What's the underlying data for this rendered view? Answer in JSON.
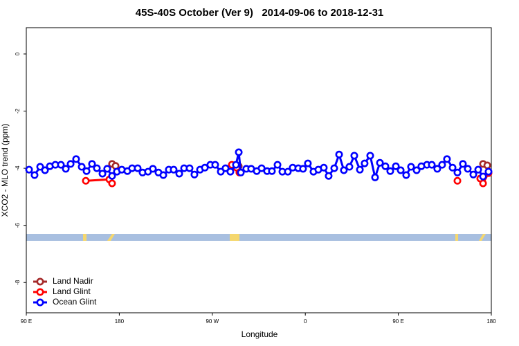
{
  "chart_data": {
    "type": "line",
    "title": "45S-40S October (Ver 9)   2014-09-06 to 2018-12-31",
    "x_label": "Longitude",
    "y_label": "XCO2 - MLO trend (ppm)",
    "xlim": [
      90,
      540
    ],
    "xticks": [
      {
        "value": 90,
        "label": "90 E"
      },
      180,
      {
        "value": 270,
        "label": "90 W"
      },
      {
        "value": 360,
        "label": "0"
      },
      {
        "value": 450,
        "label": "90 E"
      },
      {
        "value": 540,
        "label": "180"
      }
    ],
    "ylim": [
      -9.06,
      0.92
    ],
    "yticks": [
      0,
      -2,
      -4,
      -6,
      -8
    ],
    "grid": false,
    "legend": "bottom-left",
    "series": [
      {
        "name": "Land Nadir",
        "color": "#a52a2a",
        "x": [
          173.0,
          176.4,
          null,
          295.6,
          null,
          532.0,
          536.1
        ],
        "values": [
          -3.85,
          -3.92,
          null,
          -3.93,
          null,
          -3.85,
          -3.9
        ]
      },
      {
        "name": "Land Glint",
        "color": "#ff0000",
        "x": [
          147.6,
          170.4,
          173.0,
          null,
          288.9,
          293.6,
          296.2,
          null,
          507.2,
          null,
          529.3,
          532.0,
          537.3
        ],
        "values": [
          -4.44,
          -4.39,
          -4.53,
          null,
          -3.88,
          -3.98,
          -4.15,
          null,
          -4.44,
          null,
          -4.36,
          -4.53,
          -4.17
        ]
      },
      {
        "name": "Ocean Glint",
        "color": "#0000ff",
        "x": [
          92.7,
          98.0,
          103.4,
          108.1,
          112.8,
          118.1,
          123.5,
          128.2,
          132.9,
          138.2,
          143.6,
          148.3,
          153.6,
          158.3,
          163.7,
          168.3,
          173.0,
          177.7,
          182.4,
          187.8,
          192.4,
          197.8,
          202.5,
          207.8,
          212.5,
          217.9,
          222.6,
          227.9,
          232.6,
          238.0,
          242.7,
          248.0,
          252.7,
          258.1,
          262.8,
          268.1,
          272.8,
          278.2,
          282.8,
          287.5,
          292.9,
          295.6,
          297.6,
          302.9,
          307.6,
          313.0,
          317.7,
          323.0,
          327.7,
          333.1,
          337.8,
          343.1,
          347.8,
          353.2,
          357.8,
          362.5,
          367.9,
          372.6,
          377.9,
          382.6,
          388.0,
          392.7,
          397.3,
          402.7,
          407.4,
          412.8,
          417.4,
          422.8,
          427.5,
          432.2,
          437.5,
          442.2,
          447.6,
          452.3,
          457.6,
          462.3,
          467.7,
          472.3,
          477.7,
          482.4,
          487.7,
          492.4,
          497.1,
          502.5,
          507.2,
          512.5,
          517.2,
          522.6,
          527.3,
          532.0,
          537.3
        ],
        "values": [
          -4.05,
          -4.24,
          -3.95,
          -4.07,
          -3.93,
          -3.88,
          -3.88,
          -4.02,
          -3.85,
          -3.68,
          -3.95,
          -4.1,
          -3.85,
          -4.0,
          -4.19,
          -4.02,
          -4.27,
          -4.12,
          -4.05,
          -4.1,
          -4.0,
          -4.0,
          -4.15,
          -4.12,
          -4.02,
          -4.15,
          -4.24,
          -4.05,
          -4.05,
          -4.19,
          -4.0,
          -4.0,
          -4.22,
          -4.05,
          -3.98,
          -3.88,
          -3.88,
          -4.12,
          -4.0,
          -4.12,
          -3.88,
          -3.44,
          -4.15,
          -4.02,
          -4.02,
          -4.1,
          -4.0,
          -4.1,
          -4.1,
          -3.88,
          -4.12,
          -4.12,
          -3.98,
          -4.0,
          -4.02,
          -3.83,
          -4.12,
          -4.05,
          -3.98,
          -4.27,
          -4.0,
          -3.52,
          -4.07,
          -3.95,
          -3.56,
          -4.05,
          -3.83,
          -3.56,
          -4.32,
          -3.81,
          -3.93,
          -4.1,
          -3.93,
          -4.07,
          -4.24,
          -3.95,
          -4.07,
          -3.93,
          -3.88,
          -3.88,
          -4.02,
          -3.88,
          -3.68,
          -3.98,
          -4.15,
          -3.85,
          -4.02,
          -4.22,
          -4.05,
          -4.29,
          -4.12
        ]
      }
    ]
  }
}
